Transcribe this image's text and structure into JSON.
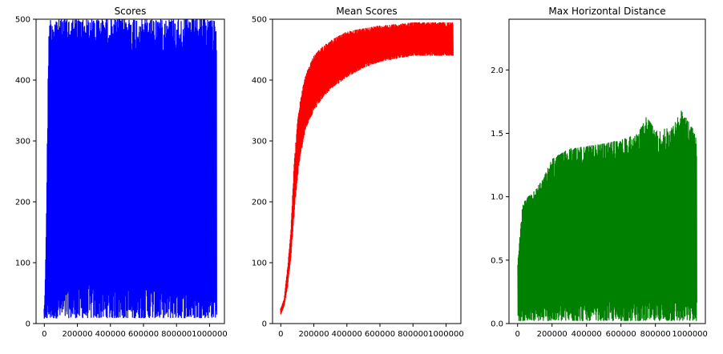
{
  "chart_data": [
    {
      "type": "line",
      "title": "Scores",
      "xlabel": "",
      "ylabel": "",
      "color": "#0000ff",
      "xlim": [
        -50000,
        1090000
      ],
      "ylim": [
        0,
        500
      ],
      "xticks": [
        0,
        200000,
        400000,
        600000,
        800000,
        1000000
      ],
      "yticks": [
        0,
        100,
        200,
        300,
        400,
        500
      ],
      "xtick_labels": [
        "0",
        "200000",
        "400000",
        "600000",
        "800000",
        "1000000"
      ],
      "ytick_labels": [
        "0",
        "100",
        "200",
        "300",
        "400",
        "500"
      ],
      "grid": false,
      "series": [
        {
          "x": [
            0,
            5000,
            10000,
            15000,
            20000,
            25000,
            30000,
            40000,
            100000,
            200000,
            300000,
            400000,
            500000,
            600000,
            700000,
            800000,
            900000,
            1000000,
            1040000
          ],
          "y_min": [
            8,
            8,
            8,
            8,
            8,
            8,
            8,
            8,
            9,
            9,
            9,
            9,
            9,
            9,
            9,
            9,
            9,
            9,
            10
          ],
          "y_max": [
            25,
            60,
            140,
            230,
            345,
            450,
            500,
            500,
            500,
            500,
            500,
            500,
            500,
            500,
            500,
            500,
            500,
            500,
            500
          ]
        }
      ]
    },
    {
      "type": "line",
      "title": "Mean Scores",
      "xlabel": "",
      "ylabel": "",
      "color": "#ff0000",
      "xlim": [
        -50000,
        1090000
      ],
      "ylim": [
        0,
        500
      ],
      "xticks": [
        0,
        200000,
        400000,
        600000,
        800000,
        1000000
      ],
      "yticks": [
        0,
        100,
        200,
        300,
        400,
        500
      ],
      "xtick_labels": [
        "0",
        "200000",
        "400000",
        "600000",
        "800000",
        "1000000"
      ],
      "ytick_labels": [
        "0",
        "100",
        "200",
        "300",
        "400",
        "500"
      ],
      "grid": false,
      "series": [
        {
          "x": [
            0,
            20000,
            40000,
            60000,
            80000,
            100000,
            120000,
            150000,
            200000,
            250000,
            300000,
            400000,
            500000,
            600000,
            700000,
            800000,
            900000,
            1000000,
            1040000
          ],
          "y_min": [
            15,
            30,
            60,
            110,
            180,
            240,
            280,
            320,
            350,
            370,
            385,
            405,
            420,
            430,
            435,
            440,
            440,
            440,
            440
          ],
          "y_max": [
            25,
            40,
            90,
            150,
            260,
            330,
            370,
            410,
            440,
            455,
            465,
            480,
            485,
            490,
            492,
            495,
            495,
            495,
            495
          ]
        }
      ]
    },
    {
      "type": "line",
      "title": "Max Horizontal Distance",
      "xlabel": "",
      "ylabel": "",
      "color": "#008000",
      "xlim": [
        -50000,
        1090000
      ],
      "ylim": [
        0,
        2.4
      ],
      "xticks": [
        0,
        200000,
        400000,
        600000,
        800000,
        1000000
      ],
      "yticks": [
        0,
        0.5,
        1.0,
        1.5,
        2.0
      ],
      "xtick_labels": [
        "0",
        "200000",
        "400000",
        "600000",
        "800000",
        "1000000"
      ],
      "ytick_labels": [
        "0.0",
        "0.5",
        "1.0",
        "1.5",
        "2.0"
      ],
      "grid": false,
      "series": [
        {
          "x": [
            0,
            10000,
            30000,
            60000,
            100000,
            150000,
            200000,
            300000,
            400000,
            500000,
            600000,
            700000,
            750000,
            800000,
            900000,
            950000,
            1000000,
            1040000
          ],
          "y_min": [
            0.02,
            0.02,
            0.02,
            0.02,
            0.02,
            0.02,
            0.02,
            0.02,
            0.02,
            0.02,
            0.02,
            0.02,
            0.02,
            0.02,
            0.02,
            0.02,
            0.02,
            0.02
          ],
          "y_max": [
            0.45,
            0.65,
            0.95,
            1.0,
            1.05,
            1.15,
            1.3,
            1.38,
            1.4,
            1.42,
            1.45,
            1.5,
            1.64,
            1.52,
            1.55,
            1.68,
            1.58,
            1.48
          ]
        }
      ]
    }
  ]
}
